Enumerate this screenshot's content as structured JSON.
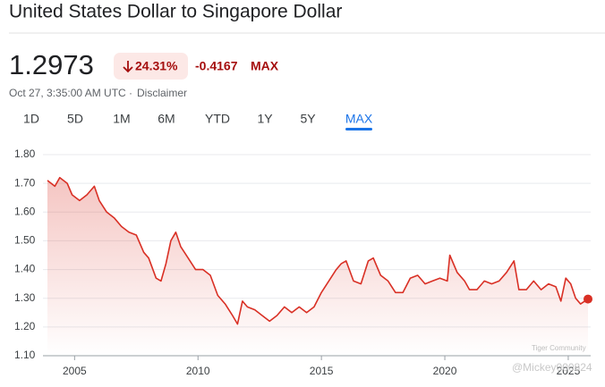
{
  "header": {
    "title": "United States Dollar to Singapore Dollar",
    "price": "1.2973",
    "change_percent": "24.31%",
    "change": "-0.4167",
    "period": "MAX",
    "timestamp": "Oct 27, 3:35:00 AM UTC",
    "disclaimer": "Disclaimer"
  },
  "tabs": [
    "1D",
    "5D",
    "1M",
    "6M",
    "YTD",
    "1Y",
    "5Y",
    "MAX"
  ],
  "watermark": [
    "Tiger Community",
    "@Mickey000824"
  ],
  "chart_data": {
    "type": "line",
    "x": [
      2003.9,
      2004.2,
      2004.4,
      2004.7,
      2004.9,
      2005.2,
      2005.5,
      2005.8,
      2006.0,
      2006.3,
      2006.6,
      2006.9,
      2007.2,
      2007.5,
      2007.8,
      2008.0,
      2008.3,
      2008.5,
      2008.7,
      2008.9,
      2009.1,
      2009.3,
      2009.6,
      2009.9,
      2010.2,
      2010.5,
      2010.8,
      2011.1,
      2011.4,
      2011.6,
      2011.8,
      2012.0,
      2012.3,
      2012.6,
      2012.9,
      2013.2,
      2013.5,
      2013.8,
      2014.1,
      2014.4,
      2014.7,
      2015.0,
      2015.3,
      2015.6,
      2015.8,
      2016.0,
      2016.3,
      2016.6,
      2016.9,
      2017.1,
      2017.4,
      2017.7,
      2018.0,
      2018.3,
      2018.6,
      2018.9,
      2019.2,
      2019.5,
      2019.8,
      2020.1,
      2020.2,
      2020.5,
      2020.8,
      2021.0,
      2021.3,
      2021.6,
      2021.9,
      2022.2,
      2022.5,
      2022.8,
      2023.0,
      2023.3,
      2023.6,
      2023.9,
      2024.2,
      2024.5,
      2024.7,
      2024.9,
      2025.1,
      2025.3,
      2025.5,
      2025.8
    ],
    "series": [
      {
        "name": "USD/SGD",
        "color": "#d93025",
        "values": [
          1.71,
          1.69,
          1.72,
          1.7,
          1.66,
          1.64,
          1.66,
          1.69,
          1.64,
          1.6,
          1.58,
          1.55,
          1.53,
          1.52,
          1.46,
          1.44,
          1.37,
          1.36,
          1.42,
          1.5,
          1.53,
          1.48,
          1.44,
          1.4,
          1.4,
          1.38,
          1.31,
          1.28,
          1.24,
          1.21,
          1.29,
          1.27,
          1.26,
          1.24,
          1.22,
          1.24,
          1.27,
          1.25,
          1.27,
          1.25,
          1.27,
          1.32,
          1.36,
          1.4,
          1.42,
          1.43,
          1.36,
          1.35,
          1.43,
          1.44,
          1.38,
          1.36,
          1.32,
          1.32,
          1.37,
          1.38,
          1.35,
          1.36,
          1.37,
          1.36,
          1.45,
          1.39,
          1.36,
          1.33,
          1.33,
          1.36,
          1.35,
          1.36,
          1.39,
          1.43,
          1.33,
          1.33,
          1.36,
          1.33,
          1.35,
          1.34,
          1.29,
          1.37,
          1.35,
          1.3,
          1.28,
          1.2973
        ]
      }
    ],
    "xlim": [
      2003.9,
      2025.8
    ],
    "xticks": [
      2005,
      2010,
      2015,
      2020,
      2025
    ],
    "ylim": [
      1.1,
      1.8
    ],
    "yticks": [
      {
        "value": 1.1,
        "label": "1.10"
      },
      {
        "value": 1.2,
        "label": "1.20"
      },
      {
        "value": 1.3,
        "label": "1.30"
      },
      {
        "value": 1.4,
        "label": "1.40"
      },
      {
        "value": 1.5,
        "label": "1.50"
      },
      {
        "value": 1.6,
        "label": "1.60"
      },
      {
        "value": 1.7,
        "label": "1.70"
      },
      {
        "value": 1.8,
        "label": "1.80"
      }
    ],
    "grid": true
  }
}
